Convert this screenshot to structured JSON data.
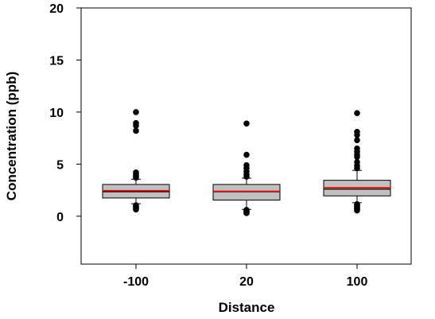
{
  "chart_data": {
    "type": "boxplot",
    "title": "",
    "xlabel": "Distance",
    "ylabel": "Concentration (ppb)",
    "ylim": [
      -4.6,
      20
    ],
    "y_ticks": [
      0,
      5,
      10,
      15,
      20
    ],
    "categories": [
      "-100",
      "20",
      "100"
    ],
    "grid": false,
    "legend": "none",
    "colors": {
      "box_fill": "#c0c0c0",
      "median": "#000000",
      "mean": "#ff0000",
      "outlier": "#000000"
    },
    "boxes": [
      {
        "category": "-100",
        "whisker_low": 1.2,
        "q1": 1.75,
        "median": 2.35,
        "mean": 2.45,
        "q3": 3.05,
        "whisker_high": 3.55,
        "outliers": [
          0.65,
          0.75,
          0.85,
          0.95,
          1.05,
          3.7,
          3.85,
          4.0,
          4.2,
          8.2,
          8.7,
          8.95,
          10.0
        ]
      },
      {
        "category": "20",
        "whisker_low": 0.65,
        "q1": 1.55,
        "median": 2.35,
        "mean": 2.4,
        "q3": 3.05,
        "whisker_high": 3.65,
        "outliers": [
          0.3,
          0.4,
          0.5,
          0.6,
          3.8,
          4.0,
          4.3,
          4.6,
          4.9,
          5.9,
          8.9
        ]
      },
      {
        "category": "100",
        "whisker_low": 1.3,
        "q1": 1.95,
        "median": 2.6,
        "mean": 2.75,
        "q3": 3.45,
        "whisker_high": 4.4,
        "outliers": [
          0.55,
          0.65,
          0.75,
          0.85,
          0.95,
          1.05,
          1.15,
          4.6,
          4.85,
          5.2,
          5.7,
          5.9,
          6.2,
          6.5,
          7.3,
          7.8,
          8.1,
          9.9
        ]
      }
    ]
  }
}
